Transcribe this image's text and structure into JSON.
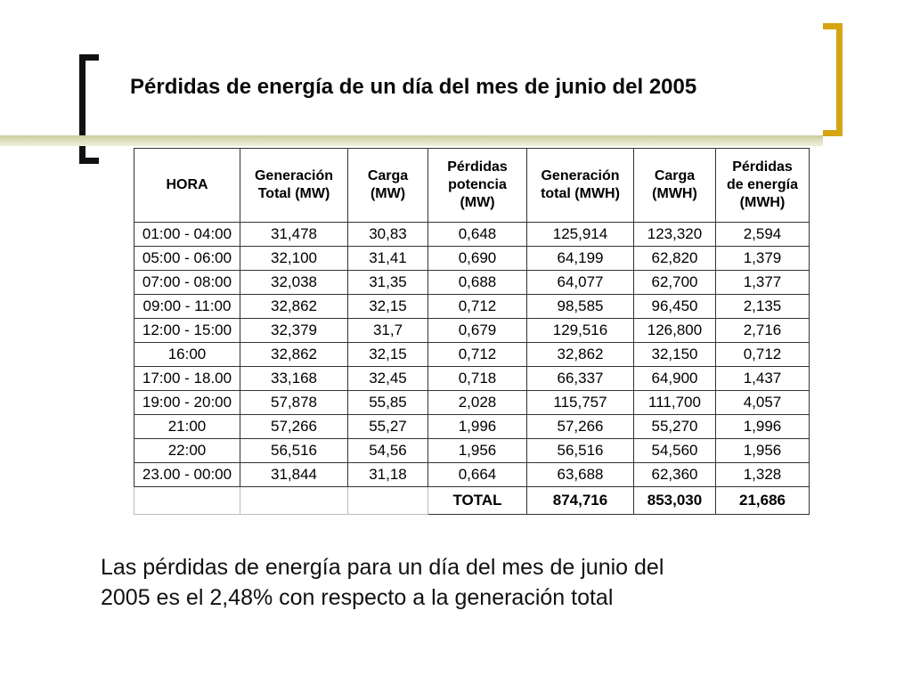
{
  "title": "Pérdidas de energía de un día del mes de junio del 2005",
  "table": {
    "headers": [
      [
        "HORA"
      ],
      [
        "Generación",
        "Total  (MW)"
      ],
      [
        "Carga",
        "(MW)"
      ],
      [
        "Pérdidas",
        "potencia",
        "(MW)"
      ],
      [
        "Generación",
        "total (MWH)"
      ],
      [
        "Carga",
        "(MWH)"
      ],
      [
        "Pérdidas",
        "de energía",
        "(MWH)"
      ]
    ],
    "rows": [
      [
        "01:00 - 04:00",
        "31,478",
        "30,83",
        "0,648",
        "125,914",
        "123,320",
        "2,594"
      ],
      [
        "05:00 - 06:00",
        "32,100",
        "31,41",
        "0,690",
        "64,199",
        "62,820",
        "1,379"
      ],
      [
        "07:00 - 08:00",
        "32,038",
        "31,35",
        "0,688",
        "64,077",
        "62,700",
        "1,377"
      ],
      [
        "09:00 - 11:00",
        "32,862",
        "32,15",
        "0,712",
        "98,585",
        "96,450",
        "2,135"
      ],
      [
        "12:00 - 15:00",
        "32,379",
        "31,7",
        "0,679",
        "129,516",
        "126,800",
        "2,716"
      ],
      [
        "16:00",
        "32,862",
        "32,15",
        "0,712",
        "32,862",
        "32,150",
        "0,712"
      ],
      [
        "17:00 - 18.00",
        "33,168",
        "32,45",
        "0,718",
        "66,337",
        "64,900",
        "1,437"
      ],
      [
        "19:00 - 20:00",
        "57,878",
        "55,85",
        "2,028",
        "115,757",
        "111,700",
        "4,057"
      ],
      [
        "21:00",
        "57,266",
        "55,27",
        "1,996",
        "57,266",
        "55,270",
        "1,996"
      ],
      [
        "22:00",
        "56,516",
        "54,56",
        "1,956",
        "56,516",
        "54,560",
        "1,956"
      ],
      [
        "23.00 - 00:00",
        "31,844",
        "31,18",
        "0,664",
        "63,688",
        "62,360",
        "1,328"
      ]
    ],
    "total": {
      "label": "TOTAL",
      "generacion_total_mwh": "874,716",
      "carga_mwh": "853,030",
      "perdidas_energia_mwh": "21,686"
    }
  },
  "conclusion_lines": [
    "Las pérdidas de energía para un día del mes de junio del",
    "2005 es el 2,48% con respecto a la generación total"
  ],
  "colors": {
    "left_bracket": "#111111",
    "right_bracket": "#d4a514",
    "accent_line": "#c9cc9c"
  }
}
